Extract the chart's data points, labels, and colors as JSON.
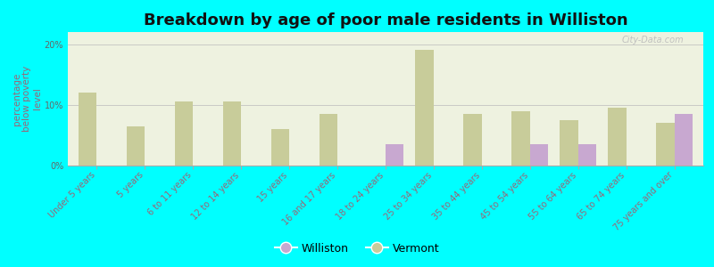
{
  "title": "Breakdown by age of poor male residents in Williston",
  "ylabel": "percentage\nbelow poverty\nlevel",
  "categories": [
    "Under 5 years",
    "5 years",
    "6 to 11 years",
    "12 to 14 years",
    "15 years",
    "16 and 17 years",
    "18 to 24 years",
    "25 to 34 years",
    "35 to 44 years",
    "45 to 54 years",
    "55 to 64 years",
    "65 to 74 years",
    "75 years and over"
  ],
  "williston": [
    0,
    0,
    0,
    0,
    0,
    0,
    3.5,
    0,
    0,
    3.5,
    3.5,
    0,
    8.5
  ],
  "vermont": [
    12.0,
    6.5,
    10.5,
    10.5,
    6.0,
    8.5,
    0,
    19.0,
    8.5,
    9.0,
    7.5,
    9.5,
    7.0
  ],
  "williston_color": "#c8a8d0",
  "vermont_color": "#c8cc9a",
  "background_color": "#00ffff",
  "plot_bg": "#eef2e0",
  "ylim": [
    0,
    22
  ],
  "yticks": [
    0,
    10,
    20
  ],
  "ytick_labels": [
    "0%",
    "10%",
    "20%"
  ],
  "bar_width": 0.38,
  "title_fontsize": 13,
  "axis_label_fontsize": 7.5,
  "tick_fontsize": 7,
  "watermark": "City-Data.com"
}
